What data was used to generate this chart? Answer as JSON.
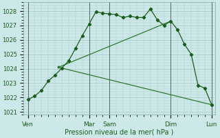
{
  "background_color": "#cde8e8",
  "grid_color": "#aacccc",
  "line_color_dark": "#1a5c1a",
  "line_color_mid": "#2d7a2d",
  "xlabel": "Pression niveau de la mer( hPa )",
  "ylim": [
    1020.8,
    1028.6
  ],
  "yticks": [
    1021,
    1022,
    1023,
    1024,
    1025,
    1026,
    1027,
    1028
  ],
  "xtick_labels": [
    "Ven",
    "Mar",
    "Sam",
    "Dim",
    "Lun"
  ],
  "xtick_positions": [
    0,
    72,
    96,
    168,
    216
  ],
  "vlines": [
    0,
    72,
    96,
    168,
    216
  ],
  "series1": {
    "x": [
      0,
      8,
      16,
      24,
      32,
      40,
      48,
      56,
      64,
      72,
      80,
      88,
      96,
      104,
      112,
      120,
      128,
      136,
      144,
      152,
      160,
      168,
      176,
      184,
      192,
      200,
      208,
      216
    ],
    "y": [
      1021.85,
      1022.1,
      1022.5,
      1023.15,
      1023.55,
      1024.05,
      1024.55,
      1025.4,
      1026.3,
      1027.1,
      1027.95,
      1027.85,
      1027.8,
      1027.75,
      1027.55,
      1027.65,
      1027.55,
      1027.55,
      1028.15,
      1027.4,
      1027.0,
      1027.3,
      1026.7,
      1025.7,
      1025.0,
      1022.85,
      1022.65,
      1021.5
    ]
  },
  "series2": {
    "x": [
      36,
      168
    ],
    "y": [
      1024.1,
      1027.3
    ]
  },
  "series3": {
    "x": [
      36,
      216
    ],
    "y": [
      1024.1,
      1021.5
    ]
  }
}
